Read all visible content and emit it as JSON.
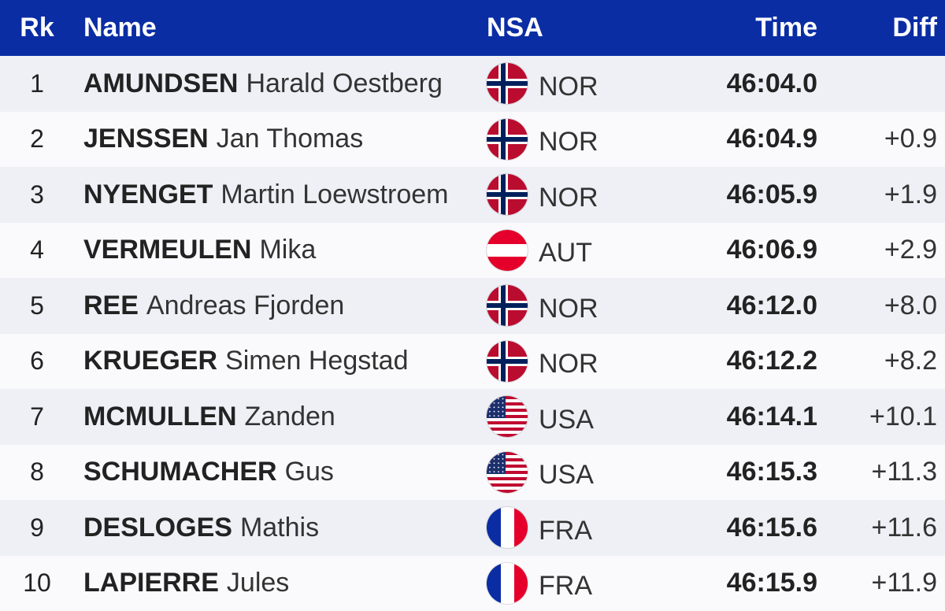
{
  "header": {
    "rank": "Rk",
    "name": "Name",
    "nsa": "NSA",
    "time": "Time",
    "diff": "Diff"
  },
  "colors": {
    "header_bg": "#0a2da4",
    "row_odd": "#eef0f6",
    "row_even": "#fafafc"
  },
  "rows": [
    {
      "rank": "1",
      "surname": "AMUNDSEN",
      "given": "Harald Oestberg",
      "nsa": "NOR",
      "flag": "norway-flag-icon",
      "time": "46:04.0",
      "diff": ""
    },
    {
      "rank": "2",
      "surname": "JENSSEN",
      "given": "Jan Thomas",
      "nsa": "NOR",
      "flag": "norway-flag-icon",
      "time": "46:04.9",
      "diff": "+0.9"
    },
    {
      "rank": "3",
      "surname": "NYENGET",
      "given": "Martin Loewstroem",
      "nsa": "NOR",
      "flag": "norway-flag-icon",
      "time": "46:05.9",
      "diff": "+1.9"
    },
    {
      "rank": "4",
      "surname": "VERMEULEN",
      "given": "Mika",
      "nsa": "AUT",
      "flag": "austria-flag-icon",
      "time": "46:06.9",
      "diff": "+2.9"
    },
    {
      "rank": "5",
      "surname": "REE",
      "given": "Andreas Fjorden",
      "nsa": "NOR",
      "flag": "norway-flag-icon",
      "time": "46:12.0",
      "diff": "+8.0"
    },
    {
      "rank": "6",
      "surname": "KRUEGER",
      "given": "Simen Hegstad",
      "nsa": "NOR",
      "flag": "norway-flag-icon",
      "time": "46:12.2",
      "diff": "+8.2"
    },
    {
      "rank": "7",
      "surname": "MCMULLEN",
      "given": "Zanden",
      "nsa": "USA",
      "flag": "usa-flag-icon",
      "time": "46:14.1",
      "diff": "+10.1"
    },
    {
      "rank": "8",
      "surname": "SCHUMACHER",
      "given": "Gus",
      "nsa": "USA",
      "flag": "usa-flag-icon",
      "time": "46:15.3",
      "diff": "+11.3"
    },
    {
      "rank": "9",
      "surname": "DESLOGES",
      "given": "Mathis",
      "nsa": "FRA",
      "flag": "france-flag-icon",
      "time": "46:15.6",
      "diff": "+11.6"
    },
    {
      "rank": "10",
      "surname": "LAPIERRE",
      "given": "Jules",
      "nsa": "FRA",
      "flag": "france-flag-icon",
      "time": "46:15.9",
      "diff": "+11.9"
    }
  ]
}
